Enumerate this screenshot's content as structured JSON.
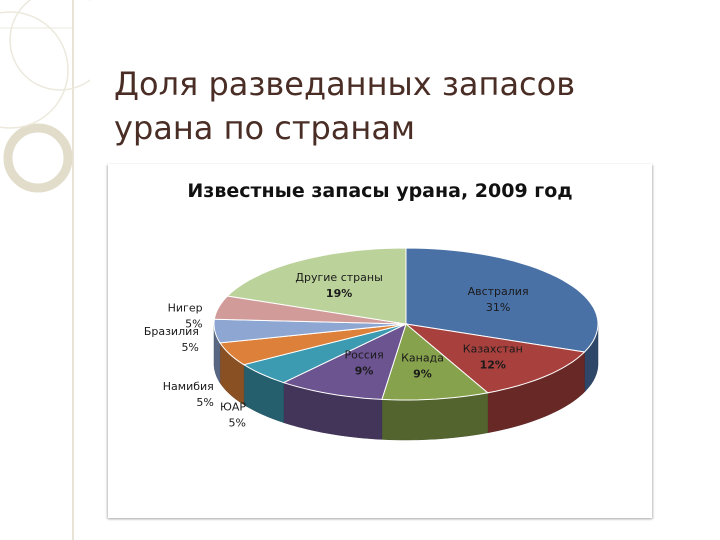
{
  "slide": {
    "title": "Доля разведанных запасов урана по странам"
  },
  "colors": {
    "title_text": "#4a2e26",
    "background": "#ffffff",
    "decor": "#e7e3d6"
  },
  "chart_data": {
    "type": "pie",
    "three_d": true,
    "title": "Известные запасы урана, 2009 год",
    "slices": [
      {
        "name": "Австралия",
        "value": 31,
        "label": "31%",
        "color": "#4a71a6",
        "bold": false
      },
      {
        "name": "Казахстан",
        "value": 12,
        "label": "12%",
        "color": "#a8413e",
        "bold": true
      },
      {
        "name": "Канада",
        "value": 9,
        "label": "9%",
        "color": "#87a24c",
        "bold": true
      },
      {
        "name": "Россия",
        "value": 9,
        "label": "9%",
        "color": "#6c5491",
        "bold": true
      },
      {
        "name": "ЮАР",
        "value": 5,
        "label": "5%",
        "color": "#3c9ab1",
        "bold": false
      },
      {
        "name": "Намибия",
        "value": 5,
        "label": "5%",
        "color": "#dd813a",
        "bold": false
      },
      {
        "name": "Бразилия",
        "value": 5,
        "label": "5%",
        "color": "#8ea6d2",
        "bold": false
      },
      {
        "name": "Нигер",
        "value": 5,
        "label": "5%",
        "color": "#d19b99",
        "bold": false
      },
      {
        "name": "Другие страны",
        "value": 19,
        "label": "19%",
        "color": "#bbd29a",
        "bold": true
      }
    ]
  }
}
